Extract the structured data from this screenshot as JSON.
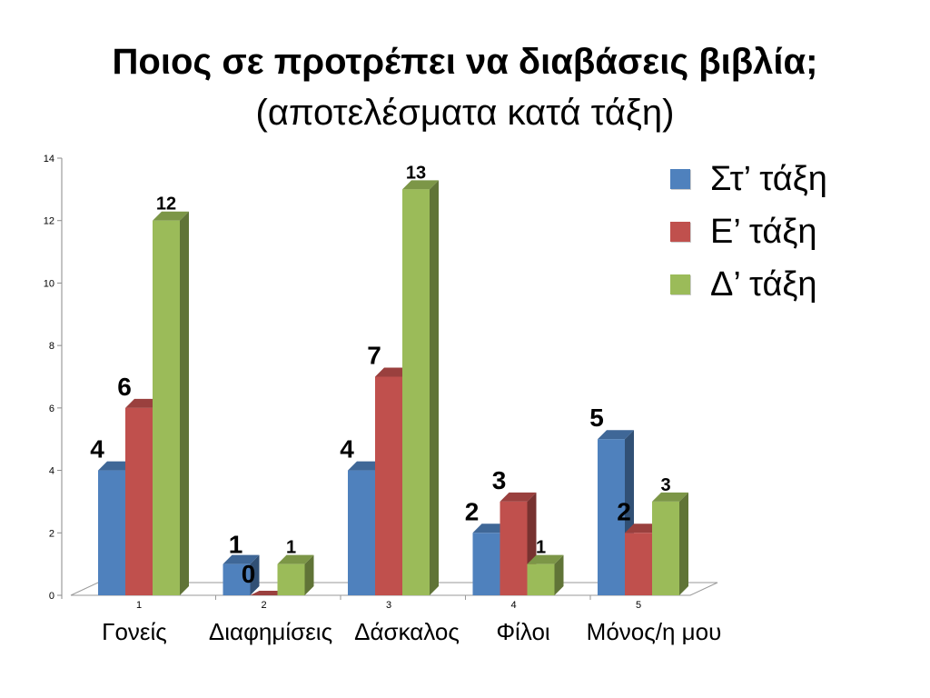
{
  "chart_data": {
    "type": "bar",
    "title": "Ποιος σε προτρέπει να διαβάσεις βιβλία;",
    "subtitle": "(αποτελέσματα κατά τάξη)",
    "x_ticks": [
      "1",
      "2",
      "3",
      "4",
      "5"
    ],
    "categories": [
      "Γονείς",
      "Διαφημίσεις",
      "Δάσκαλος",
      "Φίλοι",
      "Μόνος/η μου"
    ],
    "series": [
      {
        "name": "Στ’ τάξη",
        "values": [
          4,
          1,
          4,
          2,
          5
        ],
        "color": "#4f81bd",
        "label_size": "large"
      },
      {
        "name": "Ε’ τάξη",
        "values": [
          6,
          0,
          7,
          3,
          2
        ],
        "color": "#c0504d",
        "label_size": "large"
      },
      {
        "name": "Δ’ τάξη",
        "values": [
          12,
          1,
          13,
          1,
          3
        ],
        "color": "#9bbb59",
        "label_size": "small"
      }
    ],
    "y_ticks": [
      "0",
      "2",
      "4",
      "6",
      "8",
      "10",
      "12",
      "14"
    ],
    "ylim": [
      0,
      14
    ],
    "grid": false,
    "legend_position": "top-right",
    "style": "3d-clustered-column"
  }
}
